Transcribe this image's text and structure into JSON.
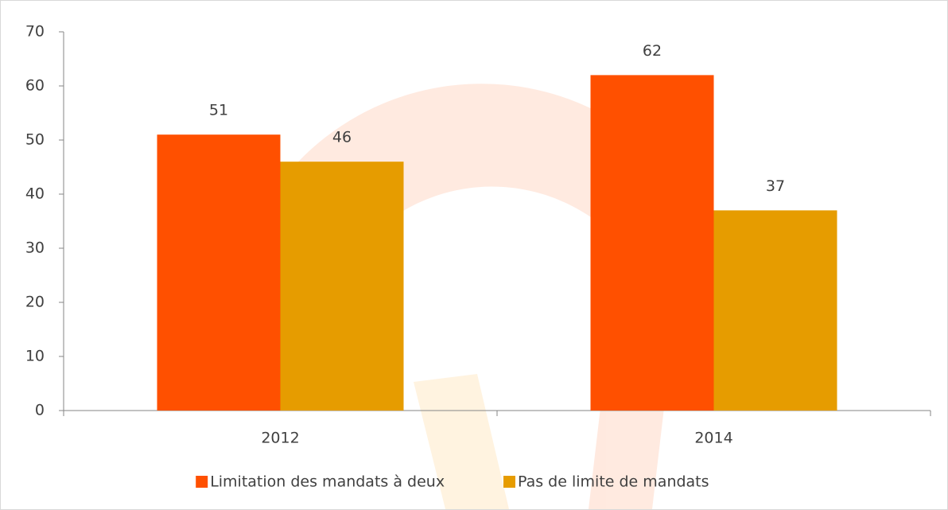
{
  "chart_data": {
    "type": "bar",
    "categories": [
      "2012",
      "2014"
    ],
    "series": [
      {
        "name": "Limitation des mandats à deux",
        "color": "#ff5000",
        "values": [
          51,
          62
        ]
      },
      {
        "name": "Pas de limite de mandats",
        "color": "#e69c00",
        "values": [
          46,
          37
        ]
      }
    ],
    "ylim": [
      0,
      70
    ],
    "yticks": [
      0,
      10,
      20,
      30,
      40,
      50,
      60,
      70
    ],
    "grid": false,
    "legend": "bottom",
    "data_labels": true
  }
}
